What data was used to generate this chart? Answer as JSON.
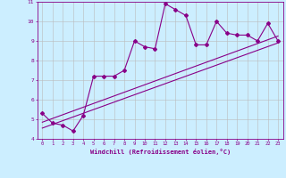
{
  "title": "",
  "xlabel": "Windchill (Refroidissement éolien,°C)",
  "x_data": [
    0,
    1,
    2,
    3,
    4,
    5,
    6,
    7,
    8,
    9,
    10,
    11,
    12,
    13,
    14,
    15,
    16,
    17,
    18,
    19,
    20,
    21,
    22,
    23
  ],
  "y_data": [
    5.3,
    4.8,
    4.7,
    4.4,
    5.2,
    7.2,
    7.2,
    7.2,
    7.5,
    9.0,
    8.7,
    8.6,
    10.9,
    10.6,
    10.3,
    8.8,
    8.8,
    10.0,
    9.4,
    9.3,
    9.3,
    9.0,
    9.9,
    9.0
  ],
  "line_color": "#880088",
  "bg_color": "#cceeff",
  "grid_color": "#bbbbbb",
  "ylim": [
    4,
    11
  ],
  "xlim": [
    -0.5,
    23.5
  ],
  "yticks": [
    4,
    5,
    6,
    7,
    8,
    9,
    10,
    11
  ],
  "xticks": [
    0,
    1,
    2,
    3,
    4,
    5,
    6,
    7,
    8,
    9,
    10,
    11,
    12,
    13,
    14,
    15,
    16,
    17,
    18,
    19,
    20,
    21,
    22,
    23
  ],
  "regression_line1": [
    4.55,
    8.9
  ],
  "regression_line2": [
    4.85,
    9.25
  ],
  "marker": "D",
  "markersize": 2,
  "linewidth": 0.8
}
